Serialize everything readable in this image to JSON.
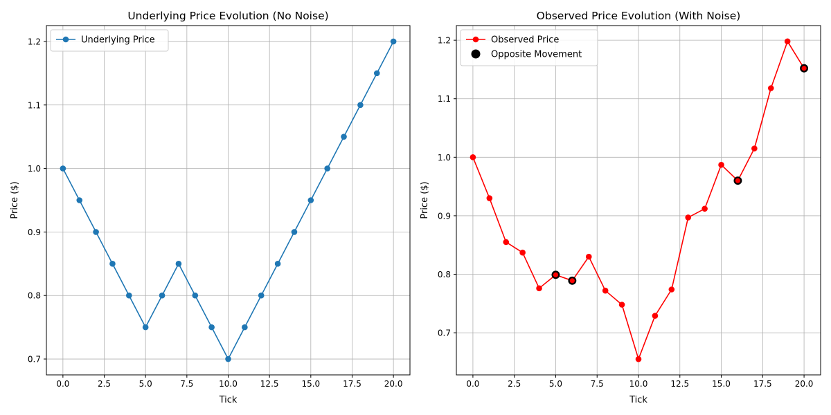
{
  "chart_data": [
    {
      "type": "line",
      "title": "Underlying Price Evolution (No Noise)",
      "xlabel": "Tick",
      "ylabel": "Price ($)",
      "xlim": [
        -1,
        21
      ],
      "ylim": [
        0.675,
        1.225
      ],
      "xticks": [
        0,
        2.5,
        5,
        7.5,
        10,
        12.5,
        15,
        17.5,
        20
      ],
      "xtick_labels": [
        "0.0",
        "2.5",
        "5.0",
        "7.5",
        "10.0",
        "12.5",
        "15.0",
        "17.5",
        "20.0"
      ],
      "yticks": [
        0.7,
        0.8,
        0.9,
        1.0,
        1.1,
        1.2
      ],
      "ytick_labels": [
        "0.7",
        "0.8",
        "0.9",
        "1.0",
        "1.1",
        "1.2"
      ],
      "grid": true,
      "legend_position": "top-left",
      "series": [
        {
          "name": "Underlying Price",
          "kind": "line-marker",
          "color": "#1f77b4",
          "x": [
            0,
            1,
            2,
            3,
            4,
            5,
            6,
            7,
            8,
            9,
            10,
            11,
            12,
            13,
            14,
            15,
            16,
            17,
            18,
            19,
            20
          ],
          "y": [
            1.0,
            0.95,
            0.9,
            0.85,
            0.8,
            0.75,
            0.8,
            0.85,
            0.8,
            0.75,
            0.7,
            0.75,
            0.8,
            0.85,
            0.9,
            0.95,
            1.0,
            1.05,
            1.1,
            1.15,
            1.2
          ]
        }
      ]
    },
    {
      "type": "line",
      "title": "Observed Price Evolution (With Noise)",
      "xlabel": "Tick",
      "ylabel": "Price ($)",
      "xlim": [
        -1,
        21
      ],
      "ylim": [
        0.628,
        1.225
      ],
      "xticks": [
        0,
        2.5,
        5,
        7.5,
        10,
        12.5,
        15,
        17.5,
        20
      ],
      "xtick_labels": [
        "0.0",
        "2.5",
        "5.0",
        "7.5",
        "10.0",
        "12.5",
        "15.0",
        "17.5",
        "20.0"
      ],
      "yticks": [
        0.7,
        0.8,
        0.9,
        1.0,
        1.1,
        1.2
      ],
      "ytick_labels": [
        "0.7",
        "0.8",
        "0.9",
        "1.0",
        "1.1",
        "1.2"
      ],
      "grid": true,
      "legend_position": "top-left",
      "series": [
        {
          "name": "Observed Price",
          "kind": "line-marker",
          "color": "#ff0000",
          "x": [
            0,
            1,
            2,
            3,
            4,
            5,
            6,
            7,
            8,
            9,
            10,
            11,
            12,
            13,
            14,
            15,
            16,
            17,
            18,
            19,
            20
          ],
          "y": [
            1.0,
            0.93,
            0.855,
            0.837,
            0.776,
            0.799,
            0.789,
            0.83,
            0.772,
            0.748,
            0.655,
            0.729,
            0.774,
            0.897,
            0.912,
            0.987,
            0.96,
            1.015,
            1.118,
            1.198,
            1.152
          ]
        },
        {
          "name": "Opposite Movement",
          "kind": "scatter",
          "color": "#000000",
          "x": [
            5,
            6,
            16,
            20
          ],
          "y": [
            0.799,
            0.789,
            0.96,
            1.152
          ]
        }
      ]
    }
  ]
}
